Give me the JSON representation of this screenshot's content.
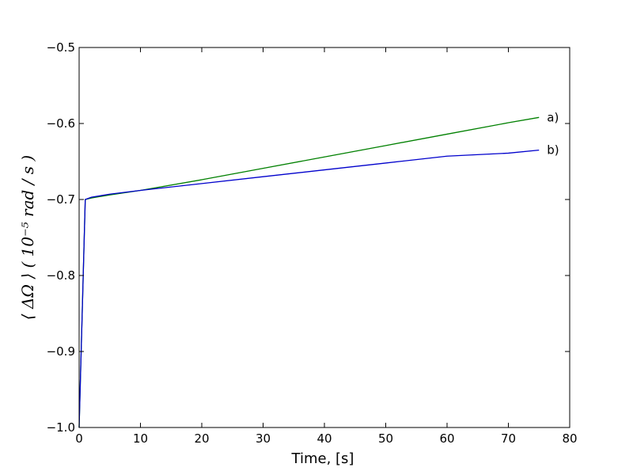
{
  "chart_data": {
    "type": "line",
    "title": "",
    "xlabel": "Time, [s]",
    "ylabel": "⟨ ΔΩ ⟩   ( 10⁻⁵ rad / s )",
    "xlim": [
      0,
      80
    ],
    "ylim": [
      -1.0,
      -0.5
    ],
    "xticks": [
      0,
      10,
      20,
      30,
      40,
      50,
      60,
      70,
      80
    ],
    "xtick_labels": [
      "0",
      "10",
      "20",
      "30",
      "40",
      "50",
      "60",
      "70",
      "80"
    ],
    "yticks": [
      -1.0,
      -0.9,
      -0.8,
      -0.7,
      -0.6,
      -0.5
    ],
    "ytick_labels": [
      "−1.0",
      "−0.9",
      "−0.8",
      "−0.7",
      "−0.6",
      "−0.5"
    ],
    "grid": false,
    "legend": "none",
    "series": [
      {
        "name": "a)",
        "color": "#008000",
        "x": [
          0,
          1,
          2,
          5,
          10,
          20,
          30,
          40,
          50,
          60,
          70,
          75
        ],
        "y": [
          -1.0,
          -0.7,
          -0.698,
          -0.694,
          -0.688,
          -0.674,
          -0.659,
          -0.644,
          -0.629,
          -0.614,
          -0.599,
          -0.592
        ]
      },
      {
        "name": "b)",
        "color": "#0000cc",
        "x": [
          0,
          1,
          2,
          5,
          10,
          20,
          30,
          40,
          50,
          60,
          70,
          75
        ],
        "y": [
          -1.0,
          -0.7,
          -0.697,
          -0.693,
          -0.688,
          -0.679,
          -0.67,
          -0.661,
          -0.652,
          -0.643,
          -0.639,
          -0.635
        ]
      }
    ]
  }
}
